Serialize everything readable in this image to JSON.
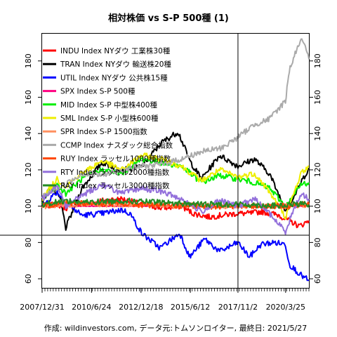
{
  "chart_data": {
    "type": "line",
    "title": "相対株価 vs S-P 500種 (1)",
    "caption": "作成: wildinvestors.com, データ元:トムソンロイター, 最終日: 2021/5/27",
    "xlabel": "",
    "ylabel": "",
    "ylim": [
      55,
      195
    ],
    "yticks": [
      60,
      80,
      100,
      120,
      140,
      160,
      180
    ],
    "xtick_labels": [
      "2007/12/31",
      "2010/6/24",
      "2012/12/18",
      "2015/6/12",
      "2017/11/2",
      "2020/3/25"
    ],
    "x_range": [
      "2007-12-31",
      "2021-05-27"
    ],
    "grid": false,
    "legend_position": "top-left",
    "series": [
      {
        "name": "INDU Index NYダウ 工業株30種",
        "color": "#ff0000",
        "x": [
          "2007-12-31",
          "2008-10-01",
          "2009-03-09",
          "2010-01-01",
          "2011-01-01",
          "2012-01-01",
          "2013-01-01",
          "2014-01-01",
          "2015-01-01",
          "2015-08-01",
          "2016-06-01",
          "2017-01-01",
          "2017-11-01",
          "2018-06-01",
          "2019-01-01",
          "2019-12-01",
          "2020-03-23",
          "2020-06-01",
          "2020-12-01",
          "2021-05-27"
        ],
        "values": [
          100,
          101,
          99,
          101,
          103,
          104,
          101,
          99,
          100,
          96,
          94,
          95,
          96,
          96,
          97,
          95,
          93,
          92,
          89,
          92
        ]
      },
      {
        "name": "TRAN Index NYダウ 輸送株20種",
        "color": "#000000",
        "x": [
          "2007-12-31",
          "2008-06-01",
          "2008-12-01",
          "2009-03-09",
          "2010-01-01",
          "2011-01-01",
          "2012-01-01",
          "2013-01-01",
          "2014-01-01",
          "2014-11-01",
          "2015-06-01",
          "2016-01-01",
          "2016-12-01",
          "2017-11-01",
          "2018-09-01",
          "2019-06-01",
          "2020-03-23",
          "2020-06-01",
          "2021-01-01",
          "2021-05-27"
        ],
        "values": [
          103,
          110,
          104,
          88,
          110,
          124,
          120,
          122,
          135,
          141,
          125,
          115,
          128,
          122,
          126,
          118,
          98,
          100,
          113,
          121
        ]
      },
      {
        "name": "UTIL Index NYダウ 公共株15種",
        "color": "#0000ff",
        "x": [
          "2007-12-31",
          "2008-10-01",
          "2009-03-09",
          "2010-01-01",
          "2011-01-01",
          "2012-01-01",
          "2012-06-01",
          "2013-01-01",
          "2013-12-01",
          "2014-12-01",
          "2015-06-01",
          "2016-03-01",
          "2016-12-01",
          "2017-11-01",
          "2018-06-01",
          "2019-01-01",
          "2019-09-01",
          "2020-03-23",
          "2020-06-01",
          "2021-01-01",
          "2021-05-27"
        ],
        "values": [
          100,
          108,
          102,
          95,
          96,
          98,
          96,
          85,
          77,
          85,
          72,
          82,
          75,
          80,
          72,
          79,
          80,
          79,
          68,
          62,
          59
        ]
      },
      {
        "name": "SPX Index S-P 500種",
        "color": "#ff0080",
        "x": [
          "2007-12-31",
          "2021-05-27"
        ],
        "values": [
          100,
          100
        ]
      },
      {
        "name": "MID Index S-P 中型株400種",
        "color": "#00ee00",
        "x": [
          "2007-12-31",
          "2008-10-01",
          "2009-03-09",
          "2010-01-01",
          "2011-01-01",
          "2012-01-01",
          "2013-01-01",
          "2014-01-01",
          "2015-01-01",
          "2016-01-01",
          "2016-12-01",
          "2017-11-01",
          "2018-09-01",
          "2019-06-01",
          "2020-03-23",
          "2020-06-01",
          "2021-01-01",
          "2021-05-27"
        ],
        "values": [
          104,
          112,
          107,
          115,
          120,
          118,
          126,
          124,
          122,
          113,
          117,
          115,
          113,
          110,
          100,
          102,
          112,
          113
        ]
      },
      {
        "name": "SML Index S-P 小型株600種",
        "color": "#eeee00",
        "x": [
          "2007-12-31",
          "2008-10-01",
          "2009-03-09",
          "2010-01-01",
          "2011-01-01",
          "2012-01-01",
          "2013-01-01",
          "2014-01-01",
          "2015-01-01",
          "2016-01-01",
          "2016-12-01",
          "2017-11-01",
          "2018-09-01",
          "2019-06-01",
          "2020-03-23",
          "2020-06-01",
          "2021-01-01",
          "2021-05-27"
        ],
        "values": [
          104,
          115,
          111,
          118,
          125,
          120,
          128,
          126,
          122,
          114,
          120,
          116,
          118,
          108,
          94,
          100,
          118,
          122
        ]
      },
      {
        "name": "SPR Index S-P 1500指数",
        "color": "#ff9060",
        "x": [
          "2007-12-31",
          "2009-03-09",
          "2012-01-01",
          "2016-01-01",
          "2020-03-23",
          "2021-05-27"
        ],
        "values": [
          100,
          101,
          101,
          100,
          100,
          101
        ]
      },
      {
        "name": "CCMP Index ナスダック総合指数",
        "color": "#aaaaaa",
        "x": [
          "2007-12-31",
          "2008-10-01",
          "2009-03-09",
          "2010-01-01",
          "2011-01-01",
          "2012-01-01",
          "2013-01-01",
          "2014-01-01",
          "2015-01-01",
          "2016-01-01",
          "2017-01-01",
          "2017-11-01",
          "2018-09-01",
          "2019-06-01",
          "2020-03-23",
          "2020-06-01",
          "2020-11-01",
          "2021-02-01",
          "2021-05-27"
        ],
        "values": [
          105,
          110,
          112,
          118,
          117,
          120,
          122,
          123,
          126,
          130,
          132,
          138,
          145,
          148,
          158,
          175,
          188,
          192,
          181
        ]
      },
      {
        "name": "RUY Index ラッセル1000種指数",
        "color": "#ff4500",
        "x": [
          "2007-12-31",
          "2009-03-09",
          "2012-01-01",
          "2016-01-01",
          "2020-03-23",
          "2021-05-27"
        ],
        "values": [
          100,
          102,
          101,
          100,
          100,
          101
        ]
      },
      {
        "name": "RTY Index ラッセル2000種指数",
        "color": "#9370db",
        "x": [
          "2007-12-31",
          "2008-10-01",
          "2009-03-09",
          "2010-01-01",
          "2011-01-01",
          "2012-01-01",
          "2013-01-01",
          "2014-01-01",
          "2015-01-01",
          "2016-01-01",
          "2016-12-01",
          "2017-11-01",
          "2018-09-01",
          "2019-06-01",
          "2020-03-23",
          "2020-06-01",
          "2021-01-01",
          "2021-05-27"
        ],
        "values": [
          104,
          112,
          100,
          106,
          112,
          107,
          110,
          108,
          104,
          97,
          103,
          100,
          104,
          96,
          86,
          92,
          107,
          104
        ]
      },
      {
        "name": "RAY Index ラッセル3000種指数",
        "color": "#228b22",
        "x": [
          "2007-12-31",
          "2009-03-09",
          "2010-01-01",
          "2012-01-01",
          "2014-01-01",
          "2016-01-01",
          "2018-01-01",
          "2020-03-23",
          "2020-06-01",
          "2021-05-27"
        ],
        "values": [
          101,
          103,
          102,
          103,
          102,
          101,
          101,
          100,
          101,
          101
        ]
      }
    ]
  }
}
